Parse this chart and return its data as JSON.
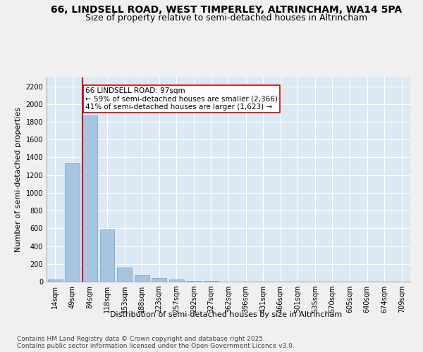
{
  "title1": "66, LINDSELL ROAD, WEST TIMPERLEY, ALTRINCHAM, WA14 5PA",
  "title2": "Size of property relative to semi-detached houses in Altrincham",
  "xlabel": "Distribution of semi-detached houses by size in Altrincham",
  "ylabel": "Number of semi-detached properties",
  "bins": [
    "14sqm",
    "49sqm",
    "84sqm",
    "118sqm",
    "153sqm",
    "188sqm",
    "223sqm",
    "257sqm",
    "292sqm",
    "327sqm",
    "362sqm",
    "396sqm",
    "431sqm",
    "466sqm",
    "501sqm",
    "535sqm",
    "570sqm",
    "605sqm",
    "640sqm",
    "674sqm",
    "709sqm"
  ],
  "values": [
    20,
    1330,
    1870,
    590,
    155,
    75,
    40,
    20,
    10,
    5,
    2,
    0,
    0,
    0,
    0,
    0,
    0,
    0,
    0,
    0,
    0
  ],
  "bar_color": "#a8c4e0",
  "bar_edge_color": "#6a9fc0",
  "vline_color": "#cc0000",
  "vline_pos": 1.57,
  "annotation_line1": "66 LINDSELL ROAD: 97sqm",
  "annotation_line2": "← 59% of semi-detached houses are smaller (2,366)",
  "annotation_line3": "41% of semi-detached houses are larger (1,623) →",
  "annotation_box_color": "#cc0000",
  "ylim_max": 2300,
  "yticks": [
    0,
    200,
    400,
    600,
    800,
    1000,
    1200,
    1400,
    1600,
    1800,
    2000,
    2200
  ],
  "background_color": "#dce9f5",
  "grid_color": "#ffffff",
  "footer_line1": "Contains HM Land Registry data © Crown copyright and database right 2025.",
  "footer_line2": "Contains public sector information licensed under the Open Government Licence v3.0.",
  "title_fontsize": 10,
  "subtitle_fontsize": 9,
  "axis_label_fontsize": 8,
  "tick_fontsize": 7,
  "annotation_fontsize": 7.5,
  "footer_fontsize": 6.5
}
